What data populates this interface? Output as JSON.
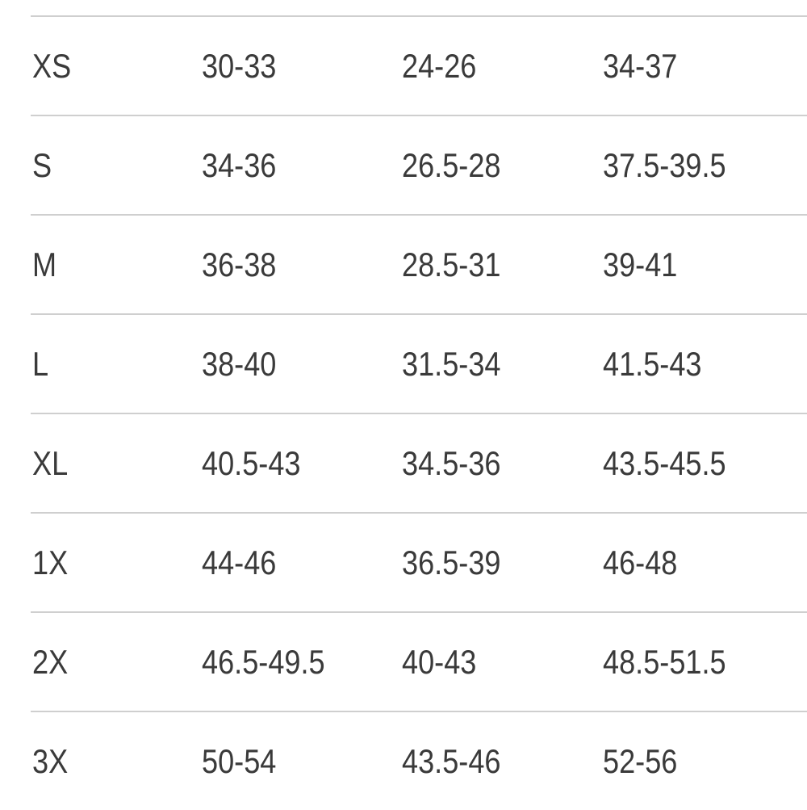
{
  "size_chart": {
    "rows": [
      {
        "size": "XS",
        "col1": "30-33",
        "col2": "24-26",
        "col3": "34-37"
      },
      {
        "size": "S",
        "col1": "34-36",
        "col2": "26.5-28",
        "col3": "37.5-39.5"
      },
      {
        "size": "M",
        "col1": "36-38",
        "col2": "28.5-31",
        "col3": "39-41"
      },
      {
        "size": "L",
        "col1": "38-40",
        "col2": "31.5-34",
        "col3": "41.5-43"
      },
      {
        "size": "XL",
        "col1": "40.5-43",
        "col2": "34.5-36",
        "col3": "43.5-45.5"
      },
      {
        "size": "1X",
        "col1": "44-46",
        "col2": "36.5-39",
        "col3": "46-48"
      },
      {
        "size": "2X",
        "col1": "46.5-49.5",
        "col2": "40-43",
        "col3": "48.5-51.5"
      },
      {
        "size": "3X",
        "col1": "50-54",
        "col2": "43.5-46",
        "col3": "52-56"
      }
    ]
  }
}
